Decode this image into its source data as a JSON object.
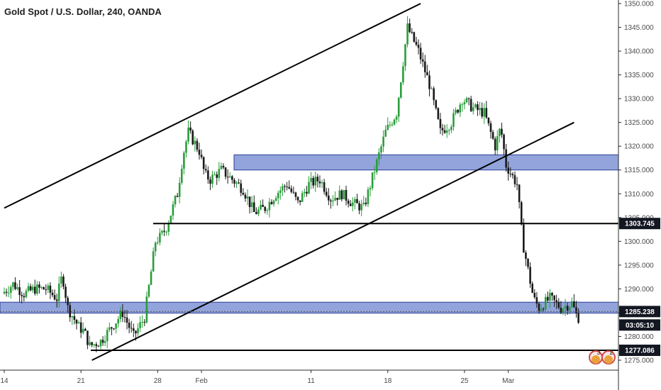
{
  "chart_data": {
    "type": "candlestick",
    "title": "Gold Spot / U.S. Dollar, 240, OANDA",
    "ylim": [
      1273,
      1350
    ],
    "xlim_days": [
      "Jan 14",
      "Mar 8"
    ],
    "x_tick_labels": [
      {
        "label": "14",
        "day": 0
      },
      {
        "label": "21",
        "day": 7
      },
      {
        "label": "28",
        "day": 14
      },
      {
        "label": "Feb",
        "day": 18
      },
      {
        "label": "11",
        "day": 28
      },
      {
        "label": "18",
        "day": 35
      },
      {
        "label": "25",
        "day": 42
      },
      {
        "label": "Mar",
        "day": 46
      }
    ],
    "y_tick_labels": [
      1275,
      1280,
      1285,
      1290,
      1295,
      1300,
      1305,
      1310,
      1315,
      1320,
      1325,
      1330,
      1335,
      1340,
      1345,
      1350
    ],
    "y_tick_label_format": "3 decimals",
    "price_path": [
      [
        0,
        1289
      ],
      [
        1,
        1291
      ],
      [
        2,
        1289
      ],
      [
        3,
        1290
      ],
      [
        4,
        1290
      ],
      [
        5,
        1288
      ],
      [
        5.5,
        1293
      ],
      [
        6,
        1286
      ],
      [
        7,
        1282
      ],
      [
        7.5,
        1281
      ],
      [
        8,
        1278
      ],
      [
        9,
        1279
      ],
      [
        10,
        1282
      ],
      [
        11,
        1285
      ],
      [
        12,
        1280
      ],
      [
        13,
        1284
      ],
      [
        14,
        1300
      ],
      [
        14.5,
        1301
      ],
      [
        15,
        1303
      ],
      [
        16,
        1310
      ],
      [
        16.5,
        1318
      ],
      [
        17,
        1323
      ],
      [
        18,
        1319
      ],
      [
        18.5,
        1314
      ],
      [
        19,
        1313
      ],
      [
        20,
        1315
      ],
      [
        21,
        1313
      ],
      [
        22,
        1311
      ],
      [
        23,
        1306
      ],
      [
        24,
        1307
      ],
      [
        25,
        1310
      ],
      [
        26,
        1312
      ],
      [
        27,
        1308
      ],
      [
        28,
        1312
      ],
      [
        29,
        1313
      ],
      [
        30,
        1309
      ],
      [
        31,
        1310
      ],
      [
        32,
        1308
      ],
      [
        33,
        1307
      ],
      [
        34,
        1315
      ],
      [
        35,
        1323
      ],
      [
        36,
        1327
      ],
      [
        37,
        1345
      ],
      [
        38,
        1340
      ],
      [
        39,
        1333
      ],
      [
        40,
        1323
      ],
      [
        41,
        1325
      ],
      [
        42,
        1330
      ],
      [
        43,
        1328
      ],
      [
        44,
        1327
      ],
      [
        45,
        1320
      ],
      [
        45.5,
        1324
      ],
      [
        46,
        1316
      ],
      [
        47,
        1312
      ],
      [
        47.5,
        1300
      ],
      [
        48,
        1294
      ],
      [
        48.5,
        1288
      ],
      [
        49,
        1286
      ],
      [
        50,
        1288
      ],
      [
        51,
        1286
      ],
      [
        52,
        1287
      ],
      [
        52.5,
        1284
      ]
    ],
    "price_lines": [
      {
        "price": 1303.745,
        "label": "1303.745"
      },
      {
        "price": 1277.086,
        "label": "1277.086"
      }
    ],
    "current_price": {
      "price": 1285.238,
      "label": "1285.238",
      "countdown": "03:05:10"
    },
    "zones": [
      {
        "from_price": 1315,
        "to_price": 1318.2
      },
      {
        "from_price": 1284.9,
        "to_price": 1287.2
      }
    ],
    "channel_lines": [
      {
        "from_day": 0,
        "from_price": 1307,
        "to_day": 38,
        "to_price": 1350
      },
      {
        "from_day": 8,
        "from_price": 1275,
        "to_day": 52,
        "to_price": 1325
      }
    ],
    "badges": [
      {
        "count": "3"
      },
      {
        "count": "2"
      }
    ],
    "colors": {
      "bull": "#2a9d3c",
      "bear": "#1a1a1a",
      "zone_fill": "#6e86cf",
      "zone_stroke": "#2b3f99",
      "line": "#000000",
      "tag_dark": "#131722",
      "tag_text": "#ffffff"
    }
  }
}
